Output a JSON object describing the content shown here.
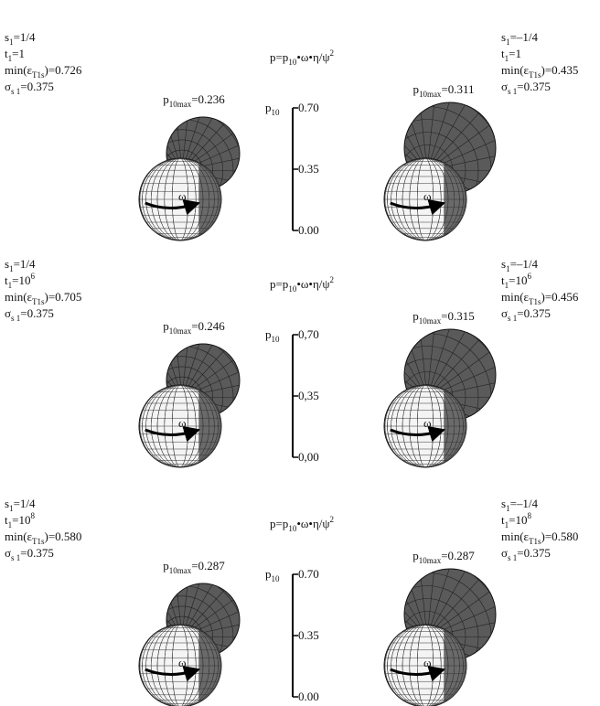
{
  "rows": [
    {
      "left": {
        "params": [
          [
            {
              "text": "s"
            },
            {
              "text": "1",
              "style": "sub"
            },
            {
              "text": "=1/4"
            }
          ],
          [
            {
              "text": "t"
            },
            {
              "text": "1",
              "style": "sub"
            },
            {
              "text": "=1"
            }
          ],
          [
            {
              "text": "min(ε"
            },
            {
              "text": "T1s",
              "style": "sub"
            },
            {
              "text": ")=0.726"
            }
          ],
          [
            {
              "text": " σ"
            },
            {
              "text": "s 1",
              "style": "sub"
            },
            {
              "text": "=0.375"
            }
          ]
        ],
        "pmax": [
          {
            "text": "p"
          },
          {
            "text": "10max",
            "style": "sub"
          },
          {
            "text": "=0.236"
          }
        ],
        "arrow": "ω"
      },
      "center": {
        "formula": [
          {
            "text": "p=p"
          },
          {
            "text": "10",
            "style": "sub"
          },
          {
            "text": "•ω•η/ψ"
          },
          {
            "text": "2",
            "style": "sup"
          }
        ],
        "scale": {
          "label": [
            {
              "text": "p"
            },
            {
              "text": "10",
              "style": "sub"
            }
          ],
          "lim": [
            0,
            0.7
          ],
          "ticks": [
            {
              "value": 0.7,
              "label": "0.70"
            },
            {
              "value": 0.35,
              "label": "0.35"
            },
            {
              "value": 0,
              "label": "0.00"
            }
          ]
        }
      },
      "right": {
        "params": [
          [
            {
              "text": "s"
            },
            {
              "text": "1",
              "style": "sub"
            },
            {
              "text": "=–1/4"
            }
          ],
          [
            {
              "text": "t"
            },
            {
              "text": "1",
              "style": "sub"
            },
            {
              "text": "=1"
            }
          ],
          [
            {
              "text": "min(ε"
            },
            {
              "text": "T1s",
              "style": "sub"
            },
            {
              "text": ")=0.435"
            }
          ],
          [
            {
              "text": " σ"
            },
            {
              "text": "s 1",
              "style": "sub"
            },
            {
              "text": "=0.375"
            }
          ]
        ],
        "pmax": [
          {
            "text": "p"
          },
          {
            "text": "10max",
            "style": "sub"
          },
          {
            "text": "=0.311"
          }
        ],
        "arrow": "ω"
      }
    },
    {
      "left": {
        "params": [
          [
            {
              "text": "s"
            },
            {
              "text": "1",
              "style": "sub"
            },
            {
              "text": "=1/4"
            }
          ],
          [
            {
              "text": "t"
            },
            {
              "text": "1",
              "style": "sub"
            },
            {
              "text": "=10"
            },
            {
              "text": "6",
              "style": "sup"
            }
          ],
          [
            {
              "text": "min(ε"
            },
            {
              "text": "T1s",
              "style": "sub"
            },
            {
              "text": ")=0.705"
            }
          ],
          [
            {
              "text": " σ"
            },
            {
              "text": "s 1",
              "style": "sub"
            },
            {
              "text": "=0.375"
            }
          ]
        ],
        "pmax": [
          {
            "text": "p"
          },
          {
            "text": "10max",
            "style": "sub"
          },
          {
            "text": "=0.246"
          }
        ],
        "arrow": "ω"
      },
      "center": {
        "formula": [
          {
            "text": "p=p"
          },
          {
            "text": "10",
            "style": "sub"
          },
          {
            "text": "•ω•η/ψ"
          },
          {
            "text": "2",
            "style": "sup"
          }
        ],
        "scale": {
          "label": [
            {
              "text": "p"
            },
            {
              "text": "10",
              "style": "sub"
            }
          ],
          "lim": [
            0,
            0.7
          ],
          "ticks": [
            {
              "value": 0.7,
              "label": "0,70"
            },
            {
              "value": 0.35,
              "label": "0,35"
            },
            {
              "value": 0,
              "label": "0,00"
            }
          ]
        }
      },
      "right": {
        "params": [
          [
            {
              "text": "s"
            },
            {
              "text": "1",
              "style": "sub"
            },
            {
              "text": "=–1/4"
            }
          ],
          [
            {
              "text": "t"
            },
            {
              "text": "1",
              "style": "sub"
            },
            {
              "text": "=10"
            },
            {
              "text": "6",
              "style": "sup"
            }
          ],
          [
            {
              "text": "min(ε"
            },
            {
              "text": "T1s",
              "style": "sub"
            },
            {
              "text": ")=0.456"
            }
          ],
          [
            {
              "text": " σ"
            },
            {
              "text": "s 1",
              "style": "sub"
            },
            {
              "text": "=0.375"
            }
          ]
        ],
        "pmax": [
          {
            "text": "p"
          },
          {
            "text": "10max",
            "style": "sub"
          },
          {
            "text": "=0.315"
          }
        ],
        "arrow": "ω"
      }
    },
    {
      "left": {
        "params": [
          [
            {
              "text": "s"
            },
            {
              "text": "1",
              "style": "sub"
            },
            {
              "text": "=1/4"
            }
          ],
          [
            {
              "text": "t"
            },
            {
              "text": "1",
              "style": "sub"
            },
            {
              "text": "=10"
            },
            {
              "text": "8",
              "style": "sup"
            }
          ],
          [
            {
              "text": "min(ε"
            },
            {
              "text": "T1s",
              "style": "sub"
            },
            {
              "text": ")=0.580"
            }
          ],
          [
            {
              "text": " σ"
            },
            {
              "text": "s 1",
              "style": "sub"
            },
            {
              "text": "=0.375"
            }
          ]
        ],
        "pmax": [
          {
            "text": "p"
          },
          {
            "text": "10max",
            "style": "sub"
          },
          {
            "text": "=0.287"
          }
        ],
        "arrow": "ω"
      },
      "center": {
        "formula": [
          {
            "text": "p=p"
          },
          {
            "text": "10",
            "style": "sub"
          },
          {
            "text": "•ω•η/ψ"
          },
          {
            "text": "2",
            "style": "sup"
          }
        ],
        "scale": {
          "label": [
            {
              "text": "p"
            },
            {
              "text": "10",
              "style": "sub"
            }
          ],
          "lim": [
            0,
            0.7
          ],
          "ticks": [
            {
              "value": 0.7,
              "label": "0.70"
            },
            {
              "value": 0.35,
              "label": "0.35"
            },
            {
              "value": 0,
              "label": "0.00"
            }
          ]
        }
      },
      "right": {
        "params": [
          [
            {
              "text": "s"
            },
            {
              "text": "1",
              "style": "sub"
            },
            {
              "text": "=–1/4"
            }
          ],
          [
            {
              "text": "t"
            },
            {
              "text": "1",
              "style": "sub"
            },
            {
              "text": "=10"
            },
            {
              "text": "8",
              "style": "sup"
            }
          ],
          [
            {
              "text": "min(ε"
            },
            {
              "text": "T1s",
              "style": "sub"
            },
            {
              "text": ")=0.580"
            }
          ],
          [
            {
              "text": " σ"
            },
            {
              "text": "s 1",
              "style": "sub"
            },
            {
              "text": "=0.375"
            }
          ]
        ],
        "pmax": [
          {
            "text": "p"
          },
          {
            "text": "10max",
            "style": "sub"
          },
          {
            "text": "=0.287"
          }
        ],
        "arrow": "ω"
      }
    }
  ]
}
